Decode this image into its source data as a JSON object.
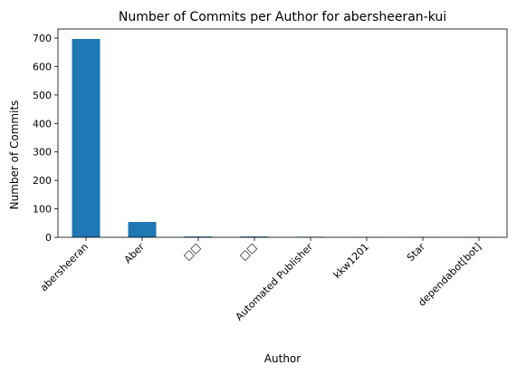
{
  "chart_data": {
    "type": "bar",
    "title": "Number of Commits per Author for abersheeran-kui",
    "xlabel": "Author",
    "ylabel": "Number of Commits",
    "categories": [
      "abersheeran",
      "Aber",
      "□□",
      "□□",
      "Automated Publisher",
      "kkw1201",
      "Star",
      "dependabot[bot]"
    ],
    "values": [
      697,
      54,
      3,
      3,
      2,
      1,
      1,
      1
    ],
    "ylim": [
      0,
      732
    ],
    "yticks": [
      0,
      100,
      200,
      300,
      400,
      500,
      600,
      700
    ],
    "grid": false,
    "bar_color": "#1f77b4"
  }
}
